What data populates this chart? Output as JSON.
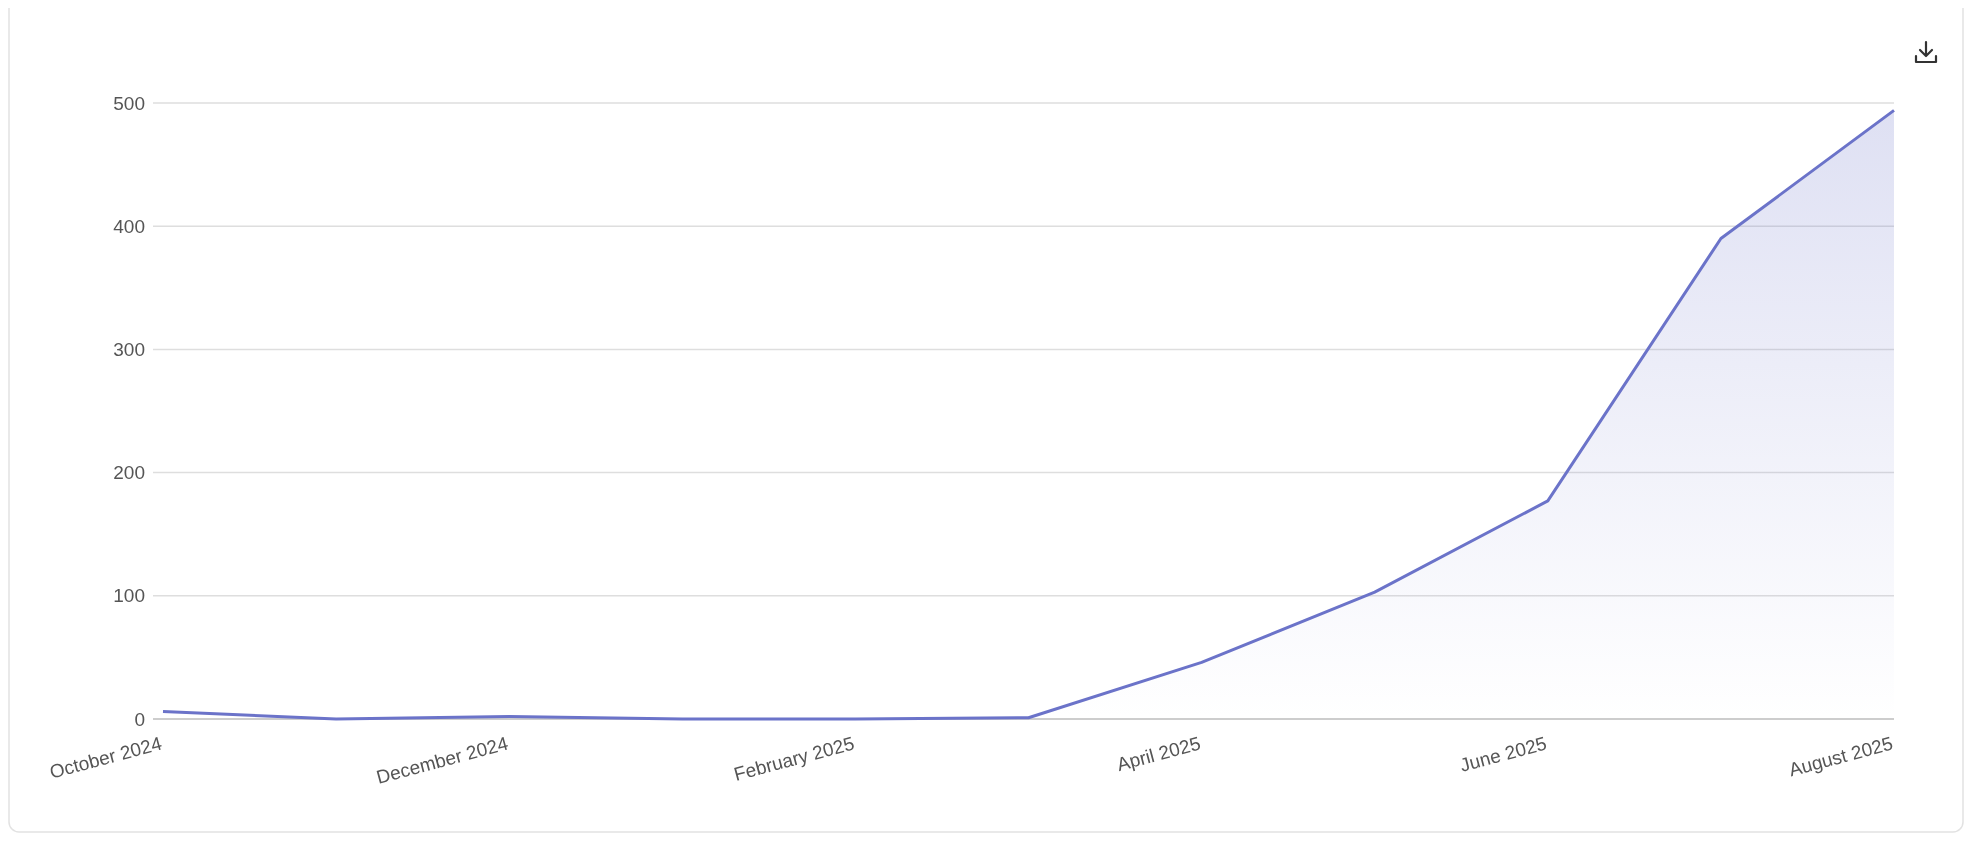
{
  "chart_data": {
    "type": "area",
    "categories": [
      "October 2024",
      null,
      "December 2024",
      null,
      "February 2025",
      null,
      "April 2025",
      null,
      "June 2025",
      null,
      "August 2025"
    ],
    "series": [
      {
        "color": "#6b73c9",
        "values": [
          6,
          0,
          2,
          0,
          0,
          1,
          46,
          103,
          177,
          390,
          494
        ]
      }
    ],
    "ylim": [
      0,
      500
    ],
    "yticks": [
      0,
      100,
      200,
      300,
      400,
      500
    ],
    "grid": "y"
  }
}
